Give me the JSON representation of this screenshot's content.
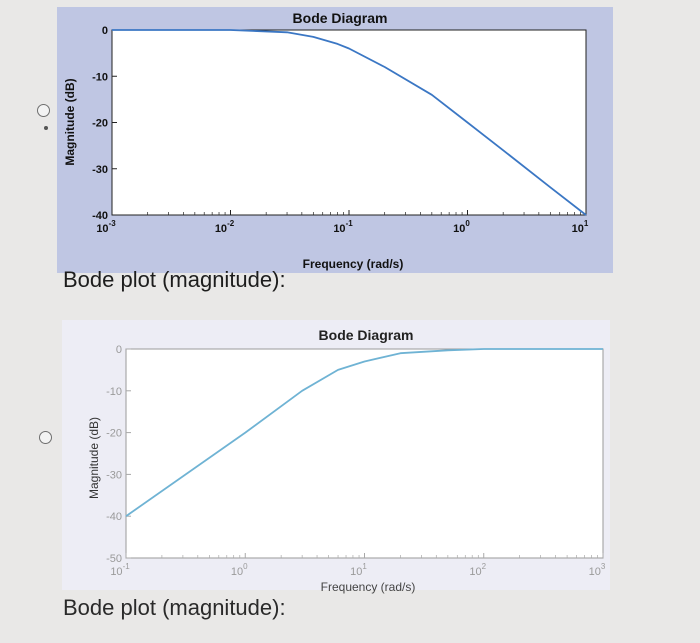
{
  "options": [
    {
      "caption": "Bode plot (magnitude):",
      "chart_data": {
        "type": "line",
        "title": "Bode Diagram",
        "xlabel": "Frequency (rad/s)",
        "ylabel": "Magnitude (dB)",
        "xscale": "log",
        "xlim": [
          0.001,
          10
        ],
        "ylim": [
          -40,
          0
        ],
        "x_ticks": [
          "10-3",
          "10-2",
          "10-1",
          "100",
          "101"
        ],
        "y_ticks": [
          "0",
          "-10",
          "-20",
          "-30",
          "-40"
        ],
        "series": [
          {
            "x": [
              0.001,
              0.01,
              0.03,
              0.05,
              0.08,
              0.1,
              0.2,
              0.5,
              1,
              2,
              5,
              10
            ],
            "y": [
              0,
              0,
              -0.5,
              -1.5,
              -3,
              -4,
              -8,
              -14,
              -20,
              -26,
              -34,
              -40
            ],
            "color": "#3b77c4"
          }
        ],
        "grid": false
      }
    },
    {
      "caption": "Bode plot (magnitude):",
      "chart_data": {
        "type": "line",
        "title": "Bode Diagram",
        "xlabel": "Frequency (rad/s)",
        "ylabel": "Magnitude (dB)",
        "xscale": "log",
        "xlim": [
          0.1,
          1000
        ],
        "ylim": [
          -50,
          0
        ],
        "x_ticks": [
          "10-1",
          "100",
          "101",
          "102",
          "103"
        ],
        "y_ticks": [
          "0",
          "-10",
          "-20",
          "-30",
          "-40",
          "-50"
        ],
        "series": [
          {
            "x": [
              0.1,
              1,
              3,
              6,
              10,
              20,
              50,
              100,
              1000
            ],
            "y": [
              -40,
              -20,
              -10,
              -5,
              -3,
              -1,
              -0.3,
              0,
              0
            ],
            "color": "#6fb3d4"
          }
        ],
        "grid": false
      }
    }
  ]
}
